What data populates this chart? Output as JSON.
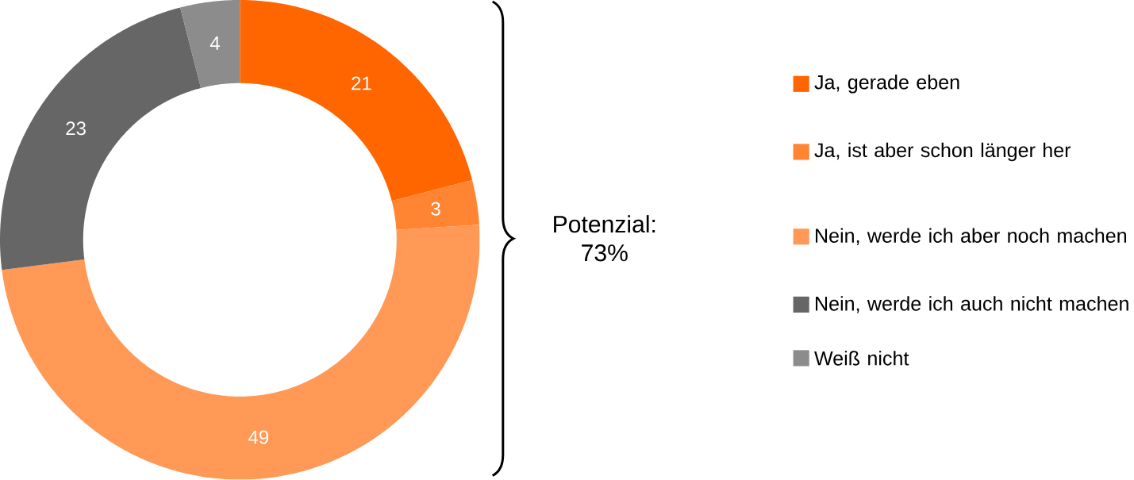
{
  "chart_data": {
    "type": "donut",
    "categories": [
      "Ja, gerade eben",
      "Ja, ist aber schon länger her",
      "Nein, werde ich aber noch machen",
      "Nein, werde ich auch nicht machen",
      "Weiß nicht"
    ],
    "values": [
      21,
      3,
      49,
      23,
      4
    ],
    "colors": [
      "#ff6600",
      "#ff8533",
      "#ff9955",
      "#666666",
      "#8c8c8c"
    ],
    "data_labels": true,
    "legend": "right",
    "annotations": [
      "Potenzial: 73%"
    ]
  }
}
